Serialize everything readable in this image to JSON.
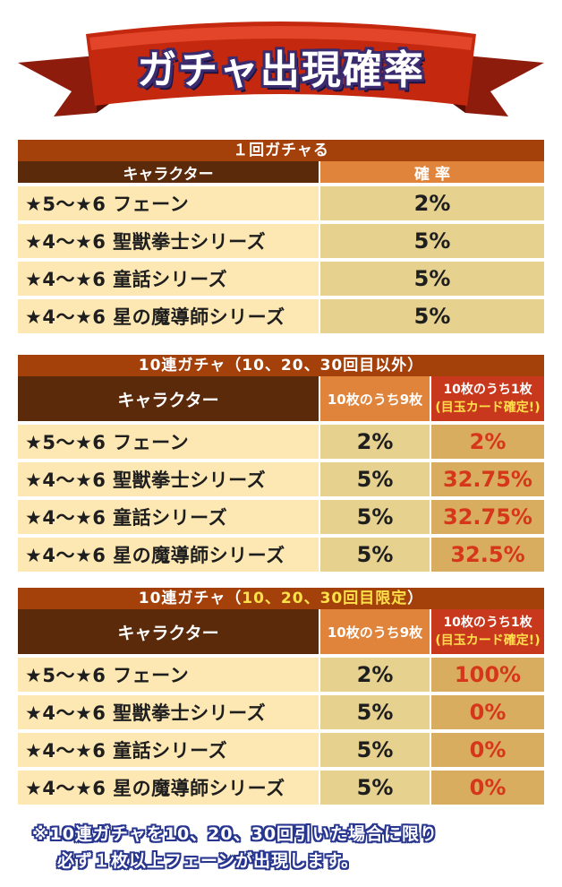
{
  "banner": {
    "title": "ガチャ出現確率"
  },
  "table1": {
    "section_title": "１回ガチャる",
    "header_character": "キャラクター",
    "header_rate": "確 率",
    "rows": [
      {
        "name": "★5～★6 フェーン",
        "rate": "2%"
      },
      {
        "name": "★4～★6 聖獣拳士シリーズ",
        "rate": "5%"
      },
      {
        "name": "★4～★6 童話シリーズ",
        "rate": "5%"
      },
      {
        "name": "★4～★6 星の魔導師シリーズ",
        "rate": "5%"
      }
    ]
  },
  "table2": {
    "section_title": "10連ガチャ（10、20、30回目以外）",
    "header_character": "キャラクター",
    "header_nine": "10枚のうち9枚",
    "header_one": "10枚のうち1枚",
    "header_one_sub": "(目玉カード確定!)",
    "rows": [
      {
        "name": "★5～★6 フェーン",
        "rate9": "2%",
        "rate1": "2%"
      },
      {
        "name": "★4～★6 聖獣拳士シリーズ",
        "rate9": "5%",
        "rate1": "32.75%"
      },
      {
        "name": "★4～★6 童話シリーズ",
        "rate9": "5%",
        "rate1": "32.75%"
      },
      {
        "name": "★4～★6 星の魔導師シリーズ",
        "rate9": "5%",
        "rate1": "32.5%"
      }
    ]
  },
  "table3": {
    "section_title_prefix": "10連ガチャ（",
    "section_title_highlight": "10、20、30回目限定",
    "section_title_suffix": "）",
    "header_character": "キャラクター",
    "header_nine": "10枚のうち9枚",
    "header_one": "10枚のうち1枚",
    "header_one_sub": "(目玉カード確定!)",
    "rows": [
      {
        "name": "★5～★6 フェーン",
        "rate9": "2%",
        "rate1": "100%"
      },
      {
        "name": "★4～★6 聖獣拳士シリーズ",
        "rate9": "5%",
        "rate1": "0%"
      },
      {
        "name": "★4～★6 童話シリーズ",
        "rate9": "5%",
        "rate1": "0%"
      },
      {
        "name": "★4～★6 星の魔導師シリーズ",
        "rate9": "5%",
        "rate1": "0%"
      }
    ]
  },
  "note": {
    "line1": "※10連ガチャを10、20、30回引いた場合に限り",
    "line2": "必ず１枚以上フェーンが出現します。"
  }
}
